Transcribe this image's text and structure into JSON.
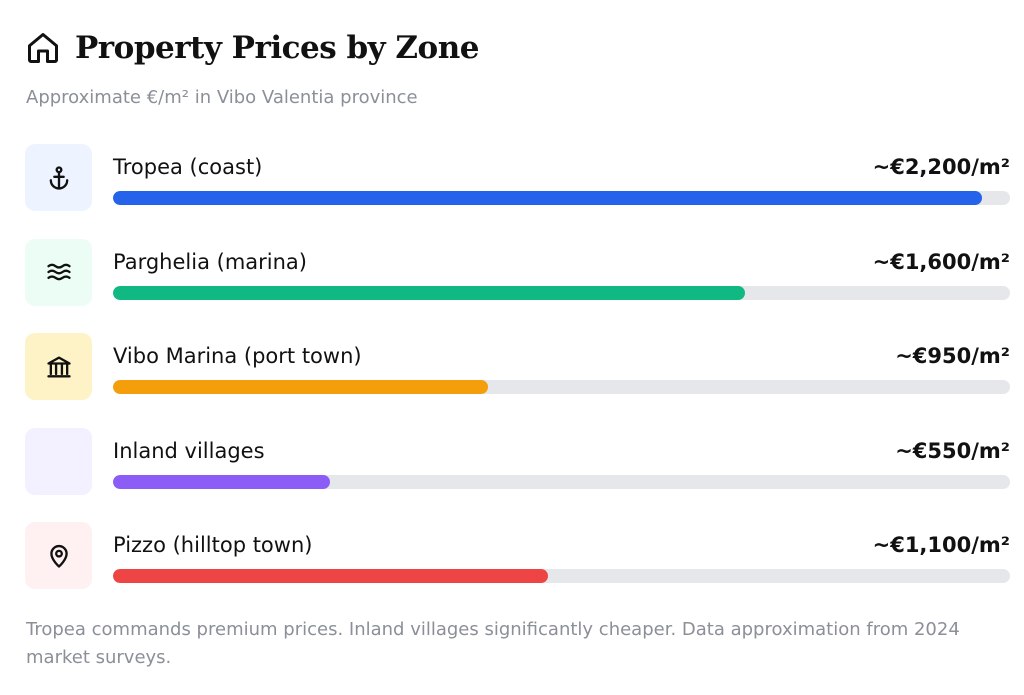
{
  "header": {
    "icon": "home-icon",
    "title": "Property Prices by Zone"
  },
  "subtitle": "Approximate €/m² in Vibo Valentia province",
  "chart_data": {
    "type": "bar",
    "orientation": "horizontal",
    "categories": [
      "Tropea (coast)",
      "Parghelia (marina)",
      "Vibo Marina (port town)",
      "Inland villages",
      "Pizzo (hilltop town)"
    ],
    "values": [
      2200,
      1600,
      950,
      550,
      1100
    ],
    "value_labels": [
      "~€2,200/m²",
      "~€1,600/m²",
      "~€950/m²",
      "~€550/m²",
      "~€1,100/m²"
    ],
    "xlim": [
      0,
      2270
    ],
    "title": "Property Prices by Zone",
    "grid": false,
    "legend": "none"
  },
  "rows": [
    {
      "icon": "anchor-icon",
      "color": "#2563eb",
      "tile_bg": "#eef4ff"
    },
    {
      "icon": "waves-icon",
      "color": "#10b981",
      "tile_bg": "#ecfdf5"
    },
    {
      "icon": "landmark-icon",
      "color": "#f59e0b",
      "tile_bg": "#fef3c7"
    },
    {
      "icon": "",
      "color": "#8b5cf6",
      "tile_bg": "#f3f0ff"
    },
    {
      "icon": "map-pin-icon",
      "color": "#ef4444",
      "tile_bg": "#fff1f1"
    }
  ],
  "footnote": "Tropea commands premium prices. Inland villages significantly cheaper. Data approximation from 2024 market surveys."
}
